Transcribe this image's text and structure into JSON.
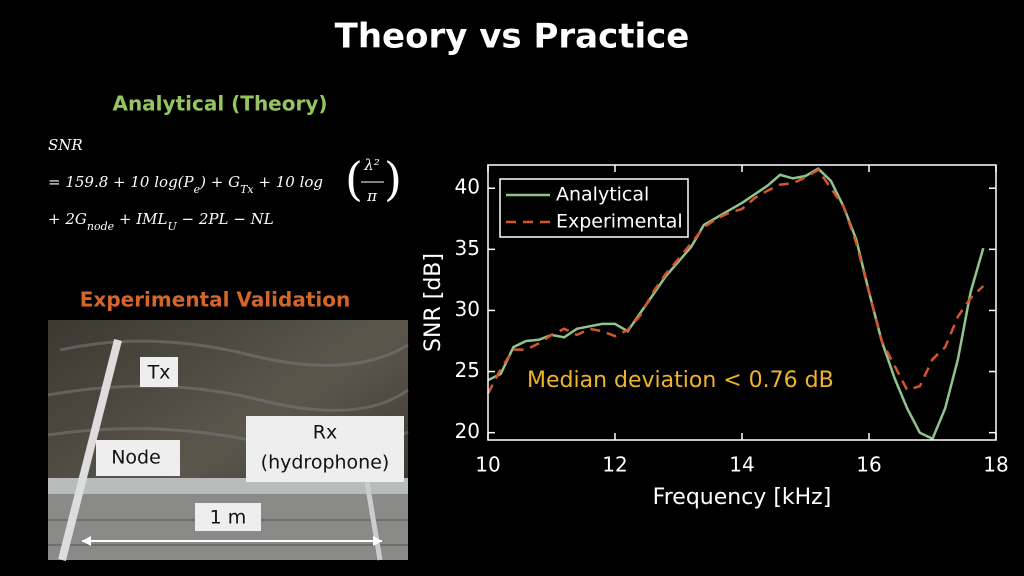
{
  "title": "Theory vs Practice",
  "theory": {
    "heading": "Analytical (Theory)",
    "lhs": "SNR",
    "line2": [
      {
        "main": "= 159.8 + 10 log(P",
        "sub": "e"
      },
      {
        "main": ") + G",
        "sub": "Tx"
      },
      {
        "main": " + 10 log"
      }
    ],
    "fraction": {
      "numerator": "λ²",
      "denominator": "π"
    },
    "line3": [
      {
        "main": "+ 2G",
        "sub": "node"
      },
      {
        "main": " + IML",
        "sub": "U"
      },
      {
        "main": " − 2PL − NL"
      }
    ]
  },
  "experiment": {
    "heading": "Experimental Validation",
    "labels": {
      "tx": "Tx",
      "node": "Node",
      "rx": "Rx",
      "rx_note": "(hydrophone)",
      "distance": "1 m"
    }
  },
  "chart_data": {
    "type": "line",
    "xlabel": "Frequency [kHz]",
    "ylabel": "SNR [dB]",
    "annotation": "Median deviation < 0.76 dB",
    "x": [
      10,
      10.2,
      10.4,
      10.6,
      10.8,
      11,
      11.2,
      11.4,
      11.6,
      11.8,
      12,
      12.2,
      12.4,
      12.6,
      12.8,
      13,
      13.2,
      13.4,
      13.6,
      13.8,
      14,
      14.2,
      14.4,
      14.6,
      14.8,
      15,
      15.2,
      15.4,
      15.6,
      15.8,
      16,
      16.2,
      16.4,
      16.6,
      16.8,
      17,
      17.2,
      17.4,
      17.6,
      17.8
    ],
    "series": [
      {
        "name": "Analytical",
        "color": "#8fc48f",
        "dashed": false,
        "values": [
          24.3,
          24.8,
          27.0,
          27.5,
          27.6,
          28.0,
          27.8,
          28.5,
          28.7,
          28.9,
          28.9,
          28.3,
          29.8,
          31.3,
          32.8,
          34.0,
          35.2,
          37.0,
          37.6,
          38.2,
          38.8,
          39.5,
          40.2,
          41.1,
          40.8,
          41.0,
          41.6,
          40.6,
          38.5,
          35.8,
          31.5,
          27.5,
          24.5,
          22.0,
          20.0,
          19.5,
          22.0,
          26.0,
          31.5,
          35.1
        ]
      },
      {
        "name": "Experimental",
        "color": "#d4552b",
        "dashed": true,
        "values": [
          23.2,
          25.2,
          26.8,
          26.8,
          27.3,
          28.0,
          28.5,
          28.0,
          28.5,
          28.3,
          27.9,
          28.4,
          29.6,
          31.5,
          33.0,
          34.2,
          35.5,
          36.8,
          37.5,
          38.0,
          38.3,
          39.2,
          39.8,
          40.3,
          40.4,
          40.9,
          41.5,
          40.0,
          38.5,
          35.5,
          31.5,
          27.5,
          25.5,
          23.5,
          23.8,
          26.0,
          27.0,
          29.5,
          31.0,
          32.0
        ]
      }
    ],
    "xlim": [
      10,
      18
    ],
    "xticks": [
      10,
      12,
      14,
      16,
      18
    ],
    "ylim": [
      19.4,
      41.9
    ],
    "yticks": [
      20,
      25,
      30,
      35,
      40
    ],
    "legend": "upper left"
  }
}
